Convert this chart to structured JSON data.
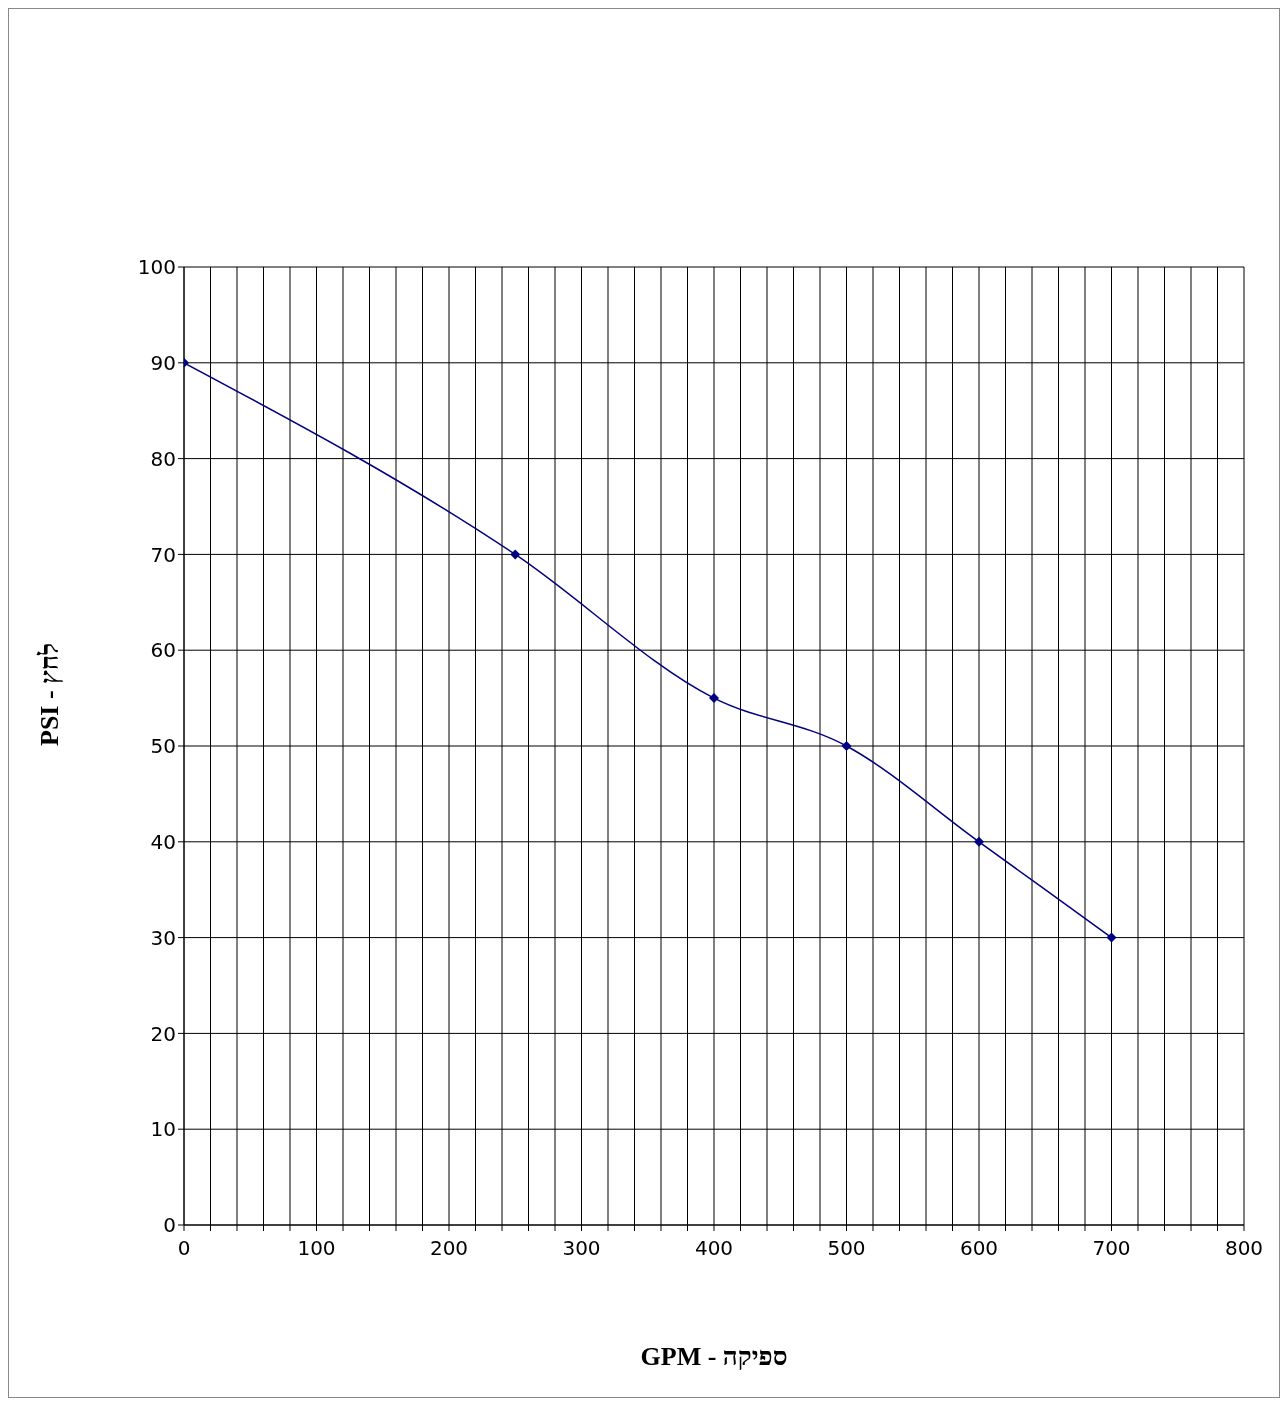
{
  "chart_data": {
    "type": "line",
    "xlabel": "GPM - ספיקה",
    "ylabel": "PSI - לחץ",
    "x": [
      0,
      250,
      400,
      500,
      600,
      700
    ],
    "series": [
      {
        "color": "#000080",
        "values": [
          90,
          70,
          55,
          50,
          40,
          30
        ]
      }
    ],
    "xlim": [
      0,
      800
    ],
    "xticks": [
      0,
      {
        "value": 20,
        "label": null
      },
      {
        "value": 40,
        "label": null
      },
      {
        "value": 60,
        "label": null
      },
      {
        "value": 80,
        "label": null
      },
      100,
      {
        "value": 120,
        "label": null
      },
      {
        "value": 140,
        "label": null
      },
      {
        "value": 160,
        "label": null
      },
      {
        "value": 180,
        "label": null
      },
      200,
      {
        "value": 220,
        "label": null
      },
      {
        "value": 240,
        "label": null
      },
      {
        "value": 260,
        "label": null
      },
      {
        "value": 280,
        "label": null
      },
      300,
      {
        "value": 320,
        "label": null
      },
      {
        "value": 340,
        "label": null
      },
      {
        "value": 360,
        "label": null
      },
      {
        "value": 380,
        "label": null
      },
      400,
      {
        "value": 420,
        "label": null
      },
      {
        "value": 440,
        "label": null
      },
      {
        "value": 460,
        "label": null
      },
      {
        "value": 480,
        "label": null
      },
      500,
      {
        "value": 520,
        "label": null
      },
      {
        "value": 540,
        "label": null
      },
      {
        "value": 560,
        "label": null
      },
      {
        "value": 580,
        "label": null
      },
      600,
      {
        "value": 620,
        "label": null
      },
      {
        "value": 640,
        "label": null
      },
      {
        "value": 660,
        "label": null
      },
      {
        "value": 680,
        "label": null
      },
      700,
      {
        "value": 720,
        "label": null
      },
      {
        "value": 740,
        "label": null
      },
      {
        "value": 760,
        "label": null
      },
      {
        "value": 780,
        "label": null
      },
      800
    ],
    "ylim": [
      0,
      100
    ],
    "yticks": [
      0,
      10,
      20,
      30,
      40,
      50,
      60,
      70,
      80,
      90,
      100
    ],
    "grid": true,
    "marker": "diamond",
    "line_style": "solid"
  }
}
